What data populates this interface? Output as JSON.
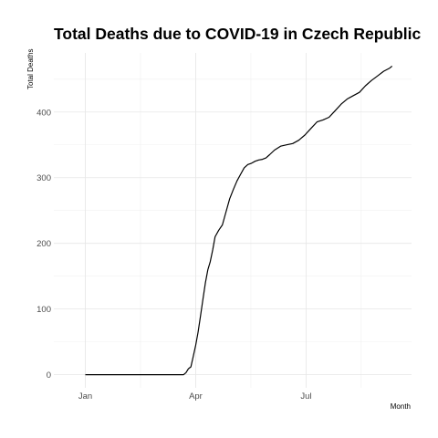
{
  "chart_data": {
    "type": "line",
    "title": "Total Deaths due to COVID-19 in Czech Republic",
    "xlabel": "Month",
    "ylabel": "Total Deaths",
    "x_ticks": [
      {
        "date": "2020-01-01",
        "label": "Jan"
      },
      {
        "date": "2020-04-01",
        "label": "Apr"
      },
      {
        "date": "2020-07-01",
        "label": "Jul"
      }
    ],
    "y_ticks": [
      0,
      100,
      200,
      300,
      400
    ],
    "xlim": [
      "2019-12-06",
      "2020-09-26"
    ],
    "ylim": [
      -20,
      490
    ],
    "grid": true,
    "series": [
      {
        "x": [
          "2020-01-01",
          "2020-02-01",
          "2020-03-01",
          "2020-03-22",
          "2020-03-24",
          "2020-03-26",
          "2020-03-28",
          "2020-03-30",
          "2020-04-01",
          "2020-04-03",
          "2020-04-05",
          "2020-04-07",
          "2020-04-09",
          "2020-04-11",
          "2020-04-13",
          "2020-04-15",
          "2020-04-17",
          "2020-04-20",
          "2020-04-23",
          "2020-04-26",
          "2020-04-29",
          "2020-05-02",
          "2020-05-05",
          "2020-05-08",
          "2020-05-11",
          "2020-05-14",
          "2020-05-17",
          "2020-05-20",
          "2020-05-23",
          "2020-05-26",
          "2020-05-29",
          "2020-06-01",
          "2020-06-05",
          "2020-06-10",
          "2020-06-15",
          "2020-06-20",
          "2020-06-25",
          "2020-06-30",
          "2020-07-05",
          "2020-07-10",
          "2020-07-15",
          "2020-07-20",
          "2020-07-25",
          "2020-07-30",
          "2020-08-04",
          "2020-08-09",
          "2020-08-14",
          "2020-08-19",
          "2020-08-24",
          "2020-08-29",
          "2020-09-03",
          "2020-09-08",
          "2020-09-10"
        ],
        "y": [
          0,
          0,
          0,
          0,
          3,
          9,
          12,
          28,
          45,
          65,
          90,
          115,
          140,
          160,
          172,
          190,
          210,
          220,
          228,
          248,
          268,
          282,
          295,
          305,
          315,
          320,
          322,
          325,
          327,
          328,
          330,
          335,
          342,
          348,
          350,
          352,
          357,
          365,
          375,
          385,
          388,
          392,
          402,
          412,
          420,
          425,
          430,
          440,
          448,
          455,
          462,
          467,
          470
        ]
      }
    ]
  }
}
